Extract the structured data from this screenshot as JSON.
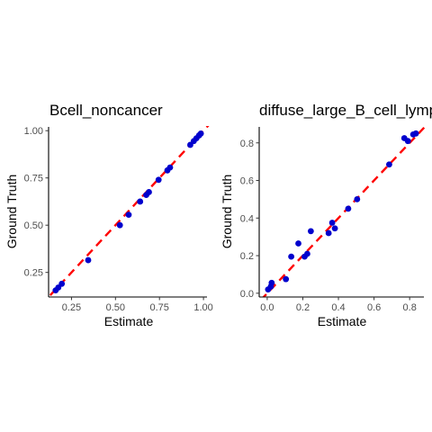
{
  "chart_data": [
    {
      "type": "scatter",
      "title": "Bcell_noncancer",
      "xlabel": "Estimate",
      "ylabel": "Ground Truth",
      "xlim": [
        0.12,
        1.02
      ],
      "ylim": [
        0.12,
        1.02
      ],
      "x_ticks": [
        0.25,
        0.5,
        0.75,
        1.0
      ],
      "x_tick_labels": [
        "0.25",
        "0.50",
        "0.75",
        "1.00"
      ],
      "y_ticks": [
        0.25,
        0.5,
        0.75,
        1.0
      ],
      "y_tick_labels": [
        "0.25",
        "0.50",
        "0.75",
        "1.00"
      ],
      "grid": false,
      "point_color": "#0000cd",
      "reference_line": {
        "style": "dashed",
        "color": "#ff0000",
        "slope": 1,
        "intercept": 0
      },
      "points": [
        {
          "x": 0.16,
          "y": 0.155
        },
        {
          "x": 0.175,
          "y": 0.17
        },
        {
          "x": 0.195,
          "y": 0.19
        },
        {
          "x": 0.345,
          "y": 0.315
        },
        {
          "x": 0.525,
          "y": 0.5
        },
        {
          "x": 0.575,
          "y": 0.555
        },
        {
          "x": 0.64,
          "y": 0.625
        },
        {
          "x": 0.675,
          "y": 0.66
        },
        {
          "x": 0.69,
          "y": 0.675
        },
        {
          "x": 0.745,
          "y": 0.74
        },
        {
          "x": 0.795,
          "y": 0.79
        },
        {
          "x": 0.81,
          "y": 0.805
        },
        {
          "x": 0.925,
          "y": 0.925
        },
        {
          "x": 0.945,
          "y": 0.945
        },
        {
          "x": 0.96,
          "y": 0.96
        },
        {
          "x": 0.975,
          "y": 0.975
        },
        {
          "x": 0.985,
          "y": 0.985
        }
      ]
    },
    {
      "type": "scatter",
      "title": "diffuse_large_B_cell_lymphoma",
      "xlabel": "Estimate",
      "ylabel": "Ground Truth",
      "xlim": [
        -0.045,
        0.88
      ],
      "ylim": [
        -0.02,
        0.885
      ],
      "x_ticks": [
        0.0,
        0.2,
        0.4,
        0.6,
        0.8
      ],
      "x_tick_labels": [
        "0.0",
        "0.2",
        "0.4",
        "0.6",
        "0.8"
      ],
      "y_ticks": [
        0.0,
        0.2,
        0.4,
        0.6,
        0.8
      ],
      "y_tick_labels": [
        "0.0",
        "0.2",
        "0.4",
        "0.6",
        "0.8"
      ],
      "grid": false,
      "point_color": "#0000cd",
      "reference_line": {
        "style": "dashed",
        "color": "#ff0000",
        "slope": 1,
        "intercept": 0
      },
      "points": [
        {
          "x": 0.005,
          "y": 0.02
        },
        {
          "x": 0.02,
          "y": 0.035
        },
        {
          "x": 0.025,
          "y": 0.055
        },
        {
          "x": 0.105,
          "y": 0.075
        },
        {
          "x": 0.135,
          "y": 0.195
        },
        {
          "x": 0.175,
          "y": 0.265
        },
        {
          "x": 0.21,
          "y": 0.195
        },
        {
          "x": 0.225,
          "y": 0.21
        },
        {
          "x": 0.245,
          "y": 0.33
        },
        {
          "x": 0.345,
          "y": 0.32
        },
        {
          "x": 0.365,
          "y": 0.375
        },
        {
          "x": 0.38,
          "y": 0.345
        },
        {
          "x": 0.455,
          "y": 0.45
        },
        {
          "x": 0.505,
          "y": 0.5
        },
        {
          "x": 0.685,
          "y": 0.685
        },
        {
          "x": 0.77,
          "y": 0.825
        },
        {
          "x": 0.79,
          "y": 0.81
        },
        {
          "x": 0.82,
          "y": 0.845
        },
        {
          "x": 0.835,
          "y": 0.85
        }
      ]
    }
  ]
}
